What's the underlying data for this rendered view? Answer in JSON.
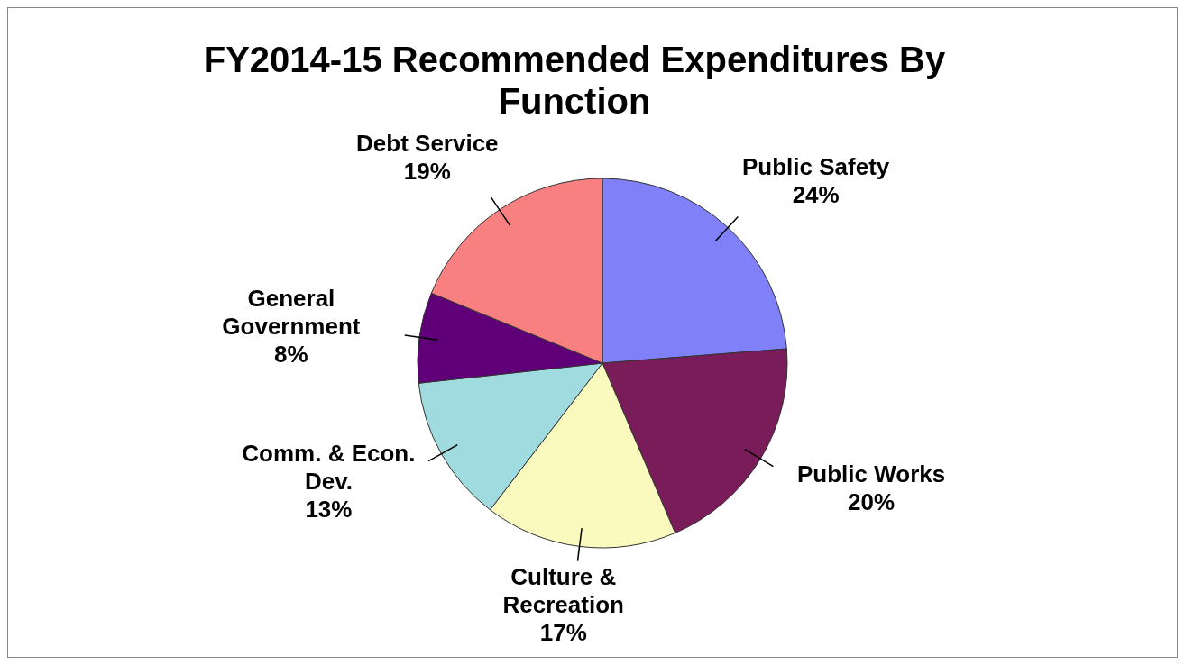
{
  "chart_data": {
    "type": "pie",
    "title": "FY2014-15 Recommended Expenditures By Function",
    "categories": [
      "Public Safety",
      "Public Works",
      "Culture & Recreation",
      "Comm. & Econ. Dev.",
      "General Government",
      "Debt Service"
    ],
    "values": [
      24,
      20,
      17,
      13,
      8,
      19
    ],
    "value_labels": [
      "24%",
      "20%",
      "17%",
      "13%",
      "8%",
      "19%"
    ],
    "colors": [
      "#8080f8",
      "#7b1c5a",
      "#fafabe",
      "#a0dcdf",
      "#5f0078",
      "#f88080"
    ]
  }
}
